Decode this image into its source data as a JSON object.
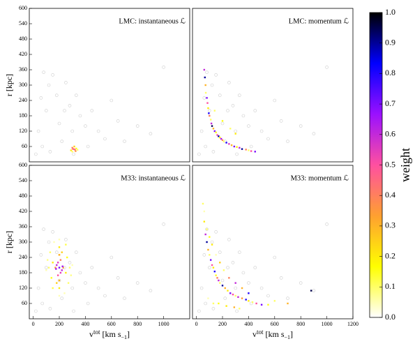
{
  "chart_data": [
    {
      "type": "scatter",
      "title": "LMC: instantaneous ℒ",
      "ylabel": "r [kpc]",
      "xlim": [
        -30,
        1200
      ],
      "ylim": [
        0,
        600
      ],
      "yticks": [
        60,
        120,
        180,
        240,
        300,
        360,
        420,
        480,
        540,
        600
      ],
      "background": {
        "color": "#cccccc",
        "x": [
          20,
          40,
          60,
          80,
          100,
          120,
          150,
          180,
          200,
          220,
          250,
          280,
          300,
          330,
          360,
          400,
          450,
          500,
          550,
          600,
          650,
          700,
          800,
          900,
          1000,
          70,
          130,
          240,
          310,
          420
        ],
        "y": [
          30,
          120,
          250,
          350,
          200,
          300,
          340,
          260,
          150,
          80,
          310,
          220,
          120,
          260,
          180,
          140,
          200,
          120,
          90,
          240,
          160,
          80,
          140,
          110,
          370,
          60,
          40,
          200,
          30,
          60
        ]
      },
      "points": {
        "x": [
          290,
          300,
          310,
          320,
          330,
          300,
          315,
          325,
          340,
          305
        ],
        "y": [
          45,
          55,
          50,
          48,
          52,
          40,
          60,
          42,
          47,
          50
        ],
        "weight": [
          0.2,
          0.4,
          0.3,
          0.5,
          0.15,
          0.1,
          0.25,
          0.35,
          0.1,
          0.45
        ]
      }
    },
    {
      "type": "scatter",
      "title": "LMC: momentum ℒ",
      "xlim": [
        -30,
        1200
      ],
      "ylim": [
        0,
        600
      ],
      "background": {
        "color": "#cccccc",
        "x": [
          20,
          40,
          60,
          80,
          100,
          120,
          150,
          180,
          200,
          220,
          250,
          280,
          300,
          330,
          360,
          400,
          450,
          500,
          550,
          600,
          650,
          700,
          800,
          900,
          1000,
          70,
          130,
          240,
          310,
          420
        ],
        "y": [
          30,
          120,
          250,
          350,
          200,
          300,
          340,
          260,
          150,
          80,
          310,
          220,
          120,
          260,
          180,
          140,
          200,
          120,
          90,
          240,
          160,
          80,
          140,
          110,
          370,
          60,
          40,
          200,
          30,
          60
        ]
      },
      "points": {
        "x": [
          60,
          65,
          70,
          72,
          80,
          85,
          90,
          95,
          100,
          110,
          115,
          120,
          130,
          140,
          150,
          160,
          170,
          180,
          190,
          200,
          210,
          230,
          250,
          270,
          290,
          310,
          330,
          350,
          380,
          400,
          420,
          450,
          140,
          200,
          260,
          300
        ],
        "y": [
          360,
          330,
          300,
          270,
          250,
          230,
          210,
          190,
          180,
          165,
          150,
          140,
          130,
          120,
          115,
          105,
          100,
          95,
          90,
          85,
          80,
          75,
          70,
          65,
          60,
          58,
          55,
          50,
          48,
          45,
          42,
          40,
          200,
          160,
          130,
          110
        ],
        "weight": [
          0.6,
          0.9,
          0.3,
          0.1,
          0.7,
          0.5,
          0.2,
          0.8,
          0.4,
          0.1,
          0.6,
          0.95,
          0.3,
          0.7,
          0.15,
          0.5,
          0.9,
          0.2,
          0.65,
          0.4,
          0.1,
          0.8,
          0.55,
          0.3,
          0.7,
          0.2,
          0.6,
          0.9,
          0.4,
          0.1,
          0.5,
          0.7,
          0.1,
          0.15,
          0.1,
          0.2
        ]
      }
    },
    {
      "type": "scatter",
      "title": "M33: instantaneous ℒ",
      "ylabel": "r [kpc]",
      "xlabel": [
        "v",
        "tot",
        " [km s",
        "−1",
        "]"
      ],
      "xlim": [
        -30,
        1200
      ],
      "ylim": [
        0,
        600
      ],
      "xticks": [
        0,
        200,
        400,
        600,
        800,
        1000
      ],
      "yticks": [
        60,
        120,
        180,
        240,
        300,
        360,
        420,
        480,
        540,
        600
      ],
      "background": {
        "color": "#cccccc",
        "x": [
          20,
          40,
          60,
          80,
          100,
          120,
          150,
          180,
          200,
          220,
          250,
          280,
          300,
          330,
          360,
          400,
          450,
          500,
          550,
          600,
          650,
          700,
          800,
          900,
          1000,
          70,
          130,
          240,
          310,
          420
        ],
        "y": [
          30,
          120,
          250,
          350,
          200,
          300,
          340,
          260,
          150,
          80,
          310,
          220,
          120,
          260,
          180,
          140,
          200,
          120,
          90,
          240,
          160,
          80,
          140,
          110,
          370,
          60,
          40,
          200,
          30,
          60
        ]
      },
      "points": {
        "x": [
          200,
          180,
          220,
          210,
          190,
          200,
          170,
          230,
          150,
          250,
          140,
          260,
          200,
          200,
          160,
          240,
          120,
          280,
          200,
          200,
          130,
          270,
          180,
          220,
          110,
          290,
          200,
          200,
          150,
          250,
          100,
          300,
          190,
          210,
          175,
          225
        ],
        "y": [
          200,
          210,
          190,
          230,
          170,
          250,
          200,
          200,
          220,
          180,
          160,
          240,
          120,
          280,
          300,
          100,
          200,
          200,
          90,
          310,
          260,
          140,
          140,
          260,
          230,
          170,
          150,
          250,
          120,
          290,
          190,
          210,
          220,
          180,
          195,
          205
        ],
        "weight": [
          0.7,
          0.6,
          0.6,
          0.4,
          0.5,
          0.3,
          0.35,
          0.35,
          0.2,
          0.2,
          0.15,
          0.15,
          0.2,
          0.2,
          0.05,
          0.05,
          0.1,
          0.1,
          0.05,
          0.05,
          0.1,
          0.1,
          0.25,
          0.25,
          0.08,
          0.08,
          0.3,
          0.3,
          0.12,
          0.12,
          0.05,
          0.05,
          0.55,
          0.55,
          0.65,
          0.65
        ]
      }
    },
    {
      "type": "scatter",
      "title": "M33: momentum ℒ",
      "xlabel": [
        "v",
        "tot",
        " [km s",
        "−1",
        "]"
      ],
      "xlim": [
        -30,
        1200
      ],
      "ylim": [
        0,
        600
      ],
      "xticks": [
        0,
        200,
        400,
        600,
        800,
        1000,
        1200
      ],
      "background": {
        "color": "#cccccc",
        "x": [
          20,
          40,
          60,
          80,
          100,
          120,
          150,
          180,
          200,
          220,
          250,
          280,
          300,
          330,
          360,
          400,
          450,
          500,
          550,
          600,
          650,
          700,
          800,
          900,
          1000,
          70,
          130,
          240,
          310,
          420
        ],
        "y": [
          30,
          120,
          250,
          350,
          200,
          300,
          340,
          260,
          150,
          80,
          310,
          220,
          120,
          260,
          180,
          140,
          200,
          120,
          90,
          240,
          160,
          80,
          140,
          110,
          370,
          60,
          40,
          200,
          30,
          60
        ]
      },
      "points": {
        "x": [
          50,
          60,
          70,
          80,
          90,
          100,
          110,
          120,
          130,
          140,
          150,
          160,
          170,
          180,
          200,
          220,
          240,
          260,
          280,
          300,
          320,
          350,
          380,
          400,
          430,
          460,
          500,
          550,
          600,
          700,
          880,
          60,
          80,
          100,
          120,
          150,
          180,
          210,
          250,
          300,
          350,
          400,
          90,
          130,
          170,
          230,
          290,
          330
        ],
        "y": [
          450,
          380,
          330,
          300,
          270,
          250,
          230,
          210,
          200,
          185,
          170,
          160,
          150,
          140,
          130,
          120,
          110,
          100,
          95,
          90,
          85,
          80,
          75,
          70,
          65,
          60,
          55,
          55,
          70,
          60,
          110,
          420,
          350,
          320,
          290,
          250,
          220,
          190,
          160,
          140,
          120,
          100,
          80,
          60,
          60,
          50,
          45,
          40
        ],
        "weight": [
          0.1,
          0.2,
          0.6,
          0.9,
          0.3,
          0.1,
          0.7,
          0.5,
          0.2,
          0.8,
          0.15,
          0.4,
          0.6,
          0.1,
          0.9,
          0.3,
          0.2,
          0.7,
          0.5,
          0.1,
          0.6,
          0.35,
          0.8,
          0.2,
          0.1,
          0.5,
          0.7,
          0.15,
          0.1,
          0.3,
          0.95,
          0.05,
          0.1,
          0.15,
          0.2,
          0.05,
          0.25,
          0.1,
          0.4,
          0.6,
          0.3,
          0.8,
          0.05,
          0.1,
          0.15,
          0.2,
          0.3,
          0.1
        ]
      }
    }
  ],
  "colorbar": {
    "label": "weight",
    "lim": [
      0,
      1
    ],
    "colors": [
      "#ffffff",
      "#ffff00",
      "#ffa030",
      "#ff50a0",
      "#9a10ff",
      "#0000ff",
      "#000000"
    ],
    "ticks": [
      {
        "value": 0,
        "label": "0.0"
      },
      0.1,
      0.2,
      0.3,
      0.4,
      0.5,
      0.6,
      0.7,
      0.8,
      0.9,
      {
        "value": 1,
        "label": "1.0"
      }
    ]
  }
}
